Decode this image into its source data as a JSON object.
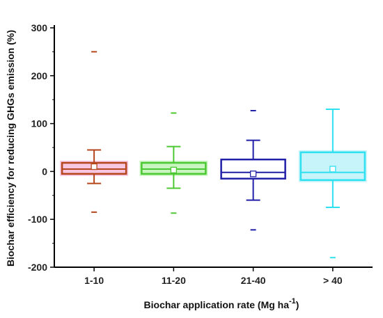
{
  "chart_data": {
    "type": "box",
    "xlabel": "Biochar application rate (Mg ha",
    "xlabel_sup": "-1",
    "xlabel_end": ")",
    "ylabel": "Biochar efficiency for reducing GHGs emission (%)",
    "ylim": [
      -200,
      300
    ],
    "yticks": [
      -200,
      -100,
      0,
      100,
      200,
      300
    ],
    "ytick_labels": [
      "-200",
      "-100",
      "0",
      "100",
      "200",
      "300"
    ],
    "categories": [
      "1-10",
      "11-20",
      "21-40",
      "> 40"
    ],
    "boxes": [
      {
        "category": "1-10",
        "color": "#b5451b",
        "fill": "#f7c6e0",
        "whisker_low": -25,
        "q1": -5,
        "median": 5,
        "q3": 18,
        "whisker_high": 45,
        "mean": 10,
        "outliers": [
          250,
          -85
        ]
      },
      {
        "category": "11-20",
        "color": "#4cc832",
        "fill": "#c8f5c0",
        "whisker_low": -35,
        "q1": -5,
        "median": 5,
        "q3": 18,
        "whisker_high": 52,
        "mean": 3,
        "outliers": [
          122,
          -87
        ]
      },
      {
        "category": "21-40",
        "color": "#1f1fa8",
        "fill": "#ffffff",
        "whisker_low": -60,
        "q1": -15,
        "median": -2,
        "q3": 25,
        "whisker_high": 65,
        "mean": -5,
        "outliers": [
          127,
          -122
        ]
      },
      {
        "category": "> 40",
        "color": "#2ee0f0",
        "fill": "#c6f4fa",
        "whisker_low": -75,
        "q1": -18,
        "median": -2,
        "q3": 40,
        "whisker_high": 130,
        "mean": 5,
        "outliers": [
          -180
        ]
      }
    ]
  }
}
